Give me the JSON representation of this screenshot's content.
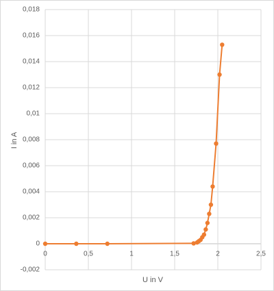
{
  "chart_data": {
    "type": "scatter-line",
    "x_label": "U in V",
    "y_label": "I in A",
    "x": [
      0,
      0.36,
      0.72,
      1.72,
      1.76,
      1.78,
      1.8,
      1.82,
      1.84,
      1.86,
      1.88,
      1.9,
      1.92,
      1.94,
      1.98,
      2.02,
      2.05
    ],
    "values": [
      0,
      0,
      0,
      3e-05,
      0.0001,
      0.0002,
      0.0003,
      0.0005,
      0.0007,
      0.0011,
      0.0016,
      0.0023,
      0.003,
      0.0044,
      0.0077,
      0.013,
      0.0153
    ],
    "color": "#ed7d31",
    "xlim": [
      0,
      2.5
    ],
    "xticks": [
      0,
      {
        "value": 0.5,
        "label": "0,5"
      },
      1,
      {
        "value": 1.5,
        "label": "1,5"
      },
      2,
      {
        "value": 2.5,
        "label": "2,5"
      }
    ],
    "ylim": [
      -0.002,
      0.018
    ],
    "yticks": [
      {
        "value": -0.002,
        "label": "-0,002"
      },
      0,
      {
        "value": 0.002,
        "label": "0,002"
      },
      {
        "value": 0.004,
        "label": "0,004"
      },
      {
        "value": 0.006,
        "label": "0,006"
      },
      {
        "value": 0.008,
        "label": "0,008"
      },
      {
        "value": 0.01,
        "label": "0,01"
      },
      {
        "value": 0.012,
        "label": "0,012"
      },
      {
        "value": 0.014,
        "label": "0,014"
      },
      {
        "value": 0.016,
        "label": "0,016"
      },
      {
        "value": 0.018,
        "label": "0,018"
      }
    ],
    "grid": true
  }
}
